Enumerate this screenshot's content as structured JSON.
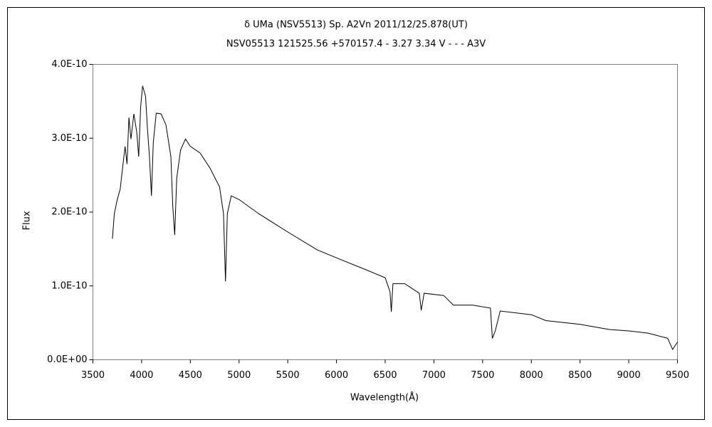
{
  "chart_data": {
    "type": "line",
    "title": "δ UMa (NSV5513)   Sp. A2Vn    2011/12/25.878(UT)",
    "subtitle": "NSV05513 121525.56 +570157.4 - 3.27 3.34 V - - - A3V",
    "x_label": "Wavelength(Å)",
    "y_label": "Flux",
    "xlim": [
      3500,
      9500
    ],
    "xticks": [
      3500,
      4000,
      4500,
      5000,
      5500,
      6000,
      6500,
      7000,
      7500,
      8000,
      8500,
      9000,
      9500
    ],
    "ylim": [
      0,
      4e-10
    ],
    "yticks": [
      {
        "value": 0,
        "label": "0.0E+00"
      },
      {
        "value": 1e-10,
        "label": "1.0E-10"
      },
      {
        "value": 2e-10,
        "label": "2.0E-10"
      },
      {
        "value": 3e-10,
        "label": "3.0E-10"
      },
      {
        "value": 4e-10,
        "label": "4.0E-10"
      }
    ],
    "grid": false,
    "series": [
      {
        "color": "#000000",
        "x": [
          3700,
          3720,
          3750,
          3780,
          3800,
          3830,
          3850,
          3870,
          3890,
          3920,
          3950,
          3970,
          3990,
          4010,
          4040,
          4060,
          4080,
          4101,
          4120,
          4150,
          4200,
          4250,
          4300,
          4320,
          4340,
          4360,
          4400,
          4450,
          4500,
          4600,
          4700,
          4800,
          4840,
          4861,
          4880,
          4920,
          5000,
          5200,
          5500,
          5800,
          6000,
          6300,
          6500,
          6550,
          6563,
          6580,
          6700,
          6850,
          6870,
          6900,
          7100,
          7200,
          7400,
          7580,
          7600,
          7630,
          7680,
          8000,
          8150,
          8500,
          8800,
          9000,
          9200,
          9400,
          9450,
          9500
        ],
        "values": [
          1.64e-10,
          1.98e-10,
          2.17e-10,
          2.31e-10,
          2.55e-10,
          2.89e-10,
          2.65e-10,
          3.28e-10,
          2.99e-10,
          3.33e-10,
          3.08e-10,
          2.75e-10,
          3.42e-10,
          3.71e-10,
          3.57e-10,
          3.13e-10,
          2.75e-10,
          2.22e-10,
          2.94e-10,
          3.34e-10,
          3.33e-10,
          3.18e-10,
          2.75e-10,
          2.07e-10,
          1.69e-10,
          2.46e-10,
          2.84e-10,
          2.99e-10,
          2.89e-10,
          2.8e-10,
          2.6e-10,
          2.34e-10,
          1.98e-10,
          1.06e-10,
          1.98e-10,
          2.22e-10,
          2.17e-10,
          1.98e-10,
          1.73e-10,
          1.49e-10,
          1.38e-10,
          1.22e-10,
          1.11e-10,
          9.2e-11,
          6.5e-11,
          1.03e-10,
          1.03e-10,
          9e-11,
          6.7e-11,
          9e-11,
          8.7e-11,
          7.4e-11,
          7.4e-11,
          7e-11,
          2.9e-11,
          3.9e-11,
          6.6e-11,
          6.1e-11,
          5.3e-11,
          4.8e-11,
          4.1e-11,
          3.9e-11,
          3.6e-11,
          2.9e-11,
          1.4e-11,
          2.4e-11
        ]
      }
    ]
  }
}
